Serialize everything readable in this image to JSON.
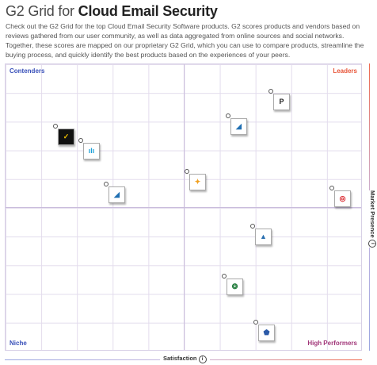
{
  "title": {
    "prefix": "G2 Grid for",
    "bold": "Cloud Email Security"
  },
  "description": "Check out the G2 Grid for the top Cloud Email Security Software products. G2 scores products and vendors based on reviews gathered from our user community, as well as data aggregated from online sources and social networks. Together, these scores are mapped on our proprietary G2 Grid, which you can use to compare products, streamline the buying process, and quickly identify the best products based on the experiences of your peers.",
  "quadrants": {
    "contenders": "Contenders",
    "leaders": "Leaders",
    "niche": "Niche",
    "high_performers": "High Performers"
  },
  "axes": {
    "x_label": "Satisfaction",
    "y_label": "Market Presence",
    "info_glyph": "i"
  },
  "products": [
    {
      "name": "proofpoint-logo",
      "glyph": "P",
      "color": "#222222",
      "bg": "#ffffff"
    },
    {
      "name": "barracuda-logo-leader",
      "glyph": "◢",
      "color": "#1f6fb2",
      "bg": "#ffffff"
    },
    {
      "name": "cisco-logo",
      "glyph": "ılı",
      "color": "#1ba0d7",
      "bg": "#ffffff"
    },
    {
      "name": "vade-logo",
      "glyph": "✓",
      "color": "#f5c400",
      "bg": "#111111"
    },
    {
      "name": "barracuda-logo-contender",
      "glyph": "◢",
      "color": "#1f6fb2",
      "bg": "#ffffff"
    },
    {
      "name": "mimecast-logo",
      "glyph": "✦",
      "color": "#f0a020",
      "bg": "#ffffff"
    },
    {
      "name": "trend-micro-logo",
      "glyph": "◎",
      "color": "#d71920",
      "bg": "#ffffff"
    },
    {
      "name": "area1-logo",
      "glyph": "▲",
      "color": "#2a6fb0",
      "bg": "#ffffff"
    },
    {
      "name": "green-logo",
      "glyph": "❂",
      "color": "#1f7a3a",
      "bg": "#ffffff"
    },
    {
      "name": "shield-logo",
      "glyph": "⬟",
      "color": "#2b5aa8",
      "bg": "#ffffff"
    }
  ]
}
